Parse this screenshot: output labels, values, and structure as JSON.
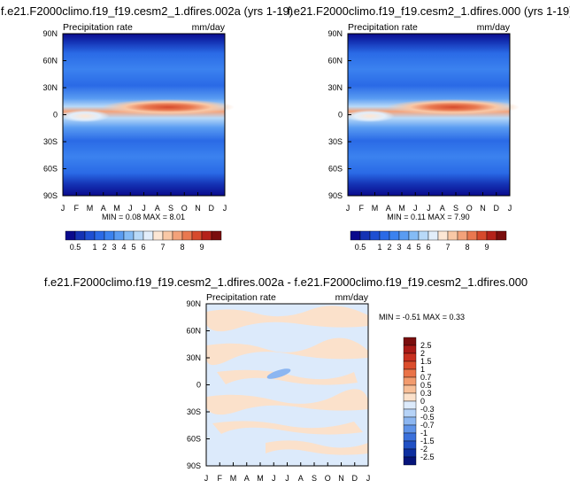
{
  "chart_data": [
    {
      "type": "heatmap",
      "title": "f.e21.F2000climo.f19_f19.cesm2_1.dfires.002a (yrs 1-19)",
      "left_label": "Precipitation rate",
      "units": "mm/day",
      "x_ticks": [
        "J",
        "F",
        "M",
        "A",
        "M",
        "J",
        "J",
        "A",
        "S",
        "O",
        "N",
        "D",
        "J"
      ],
      "y_ticks": [
        "90N",
        "60N",
        "30N",
        "0",
        "30S",
        "60S",
        "90S"
      ],
      "stats": "MIN =  0.08 MAX =  8.01",
      "colorbar_labels": [
        "0.5",
        "1",
        "2",
        "3",
        "4",
        "5",
        "6",
        "7",
        "8",
        "9"
      ]
    },
    {
      "type": "heatmap",
      "title": "f.e21.F2000climo.f19_f19.cesm2_1.dfires.000 (yrs 1-19)",
      "left_label": "Precipitation rate",
      "units": "mm/day",
      "x_ticks": [
        "J",
        "F",
        "M",
        "A",
        "M",
        "J",
        "J",
        "A",
        "S",
        "O",
        "N",
        "D",
        "J"
      ],
      "y_ticks": [
        "90N",
        "60N",
        "30N",
        "0",
        "30S",
        "60S",
        "90S"
      ],
      "stats": "MIN =  0.11 MAX =  7.90",
      "colorbar_labels": [
        "0.5",
        "1",
        "2",
        "3",
        "4",
        "5",
        "6",
        "7",
        "8",
        "9"
      ]
    },
    {
      "type": "heatmap",
      "title": "f.e21.F2000climo.f19_f19.cesm2_1.dfires.002a - f.e21.F2000climo.f19_f19.cesm2_1.dfires.000",
      "left_label": "Precipitation rate",
      "units": "mm/day",
      "x_ticks": [
        "J",
        "F",
        "M",
        "A",
        "M",
        "J",
        "J",
        "A",
        "S",
        "O",
        "N",
        "D",
        "J"
      ],
      "y_ticks": [
        "90N",
        "60N",
        "30N",
        "0",
        "30S",
        "60S",
        "90S"
      ],
      "stats": "MIN = -0.51 MAX =  0.33",
      "colorbar_labels": [
        "2.5",
        "2",
        "1.5",
        "1",
        "0.7",
        "0.5",
        "0.3",
        "0",
        "-0.3",
        "-0.5",
        "-0.7",
        "-1",
        "-1.5",
        "-2",
        "-2.5"
      ]
    }
  ],
  "colors": {
    "precip_scale": [
      "#0a0a8c",
      "#1432b4",
      "#1e4fd2",
      "#2a6ae6",
      "#3b82ef",
      "#5a9cf2",
      "#84bbf5",
      "#b8d9f8",
      "#e2eefb",
      "#fde7d5",
      "#f9c8a6",
      "#f3a27a",
      "#e97850",
      "#d64a2c",
      "#b4221a",
      "#7a0e0e"
    ],
    "diff_scale": [
      "#7a0e0e",
      "#a91a16",
      "#c8301f",
      "#db4d2c",
      "#ea7348",
      "#f29b6e",
      "#f7bf98",
      "#fbe1cb",
      "#dceafb",
      "#b6d3f7",
      "#8cb6f1",
      "#5f93e8",
      "#3a70db",
      "#2050c4",
      "#0e2fa0",
      "#06147a"
    ]
  }
}
